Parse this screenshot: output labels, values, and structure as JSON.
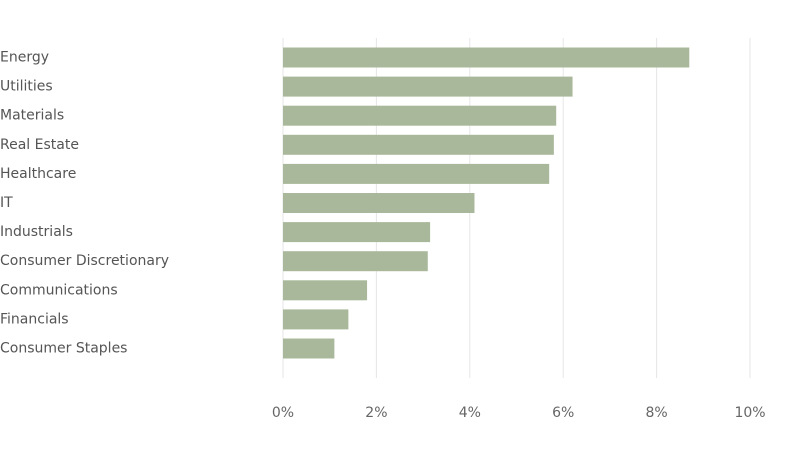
{
  "chart_data": {
    "type": "bar",
    "orientation": "horizontal",
    "categories": [
      "Energy",
      "Utilities",
      "Materials",
      "Real Estate",
      "Healthcare",
      "IT",
      "Industrials",
      "Consumer Discretionary",
      "Communications",
      "Financials",
      "Consumer Staples"
    ],
    "values": [
      8.7,
      6.2,
      5.85,
      5.8,
      5.7,
      4.1,
      3.15,
      3.1,
      1.8,
      1.4,
      1.1
    ],
    "xlim": [
      0,
      10
    ],
    "x_ticks": [
      "0%",
      "2%",
      "4%",
      "6%",
      "8%",
      "10%"
    ],
    "grid": true,
    "bar_color": "#a9b89a",
    "title": "",
    "xlabel": "",
    "ylabel": ""
  }
}
